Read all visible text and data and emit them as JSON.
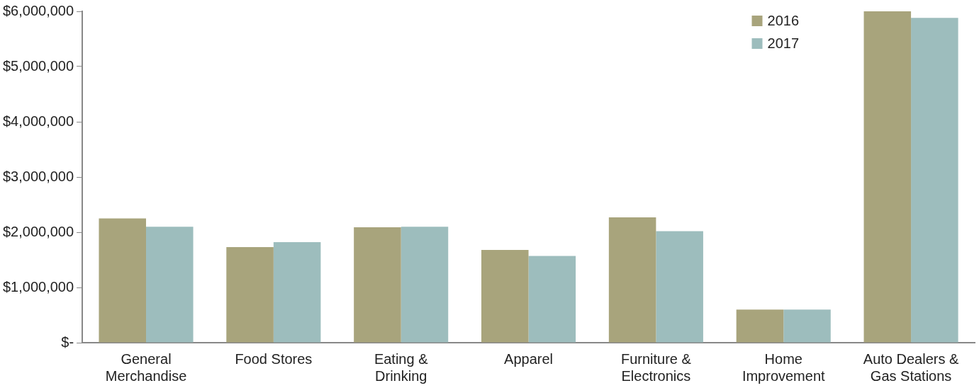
{
  "chart_data": {
    "type": "bar",
    "categories": [
      "General\nMerchandise",
      "Food Stores",
      "Eating &\nDrinking",
      "Apparel",
      "Furniture &\nElectronics",
      "Home\nImprovement",
      "Auto Dealers &\nGas Stations"
    ],
    "series": [
      {
        "name": "2016",
        "color": "#a8a47c",
        "values": [
          2250000,
          1730000,
          2090000,
          1680000,
          2270000,
          600000,
          6000000
        ]
      },
      {
        "name": "2017",
        "color": "#9dbdbd",
        "values": [
          2100000,
          1820000,
          2100000,
          1570000,
          2020000,
          600000,
          5880000
        ]
      }
    ],
    "ylim": [
      0,
      6000000
    ],
    "yticks": [
      {
        "value": 0,
        "label": "$-"
      },
      {
        "value": 1000000,
        "label": "$1,000,000"
      },
      {
        "value": 2000000,
        "label": "$2,000,000"
      },
      {
        "value": 3000000,
        "label": "$3,000,000"
      },
      {
        "value": 4000000,
        "label": "$4,000,000"
      },
      {
        "value": 5000000,
        "label": "$5,000,000"
      },
      {
        "value": 6000000,
        "label": "$6,000,000"
      }
    ],
    "grid": false,
    "legend": "top right"
  }
}
